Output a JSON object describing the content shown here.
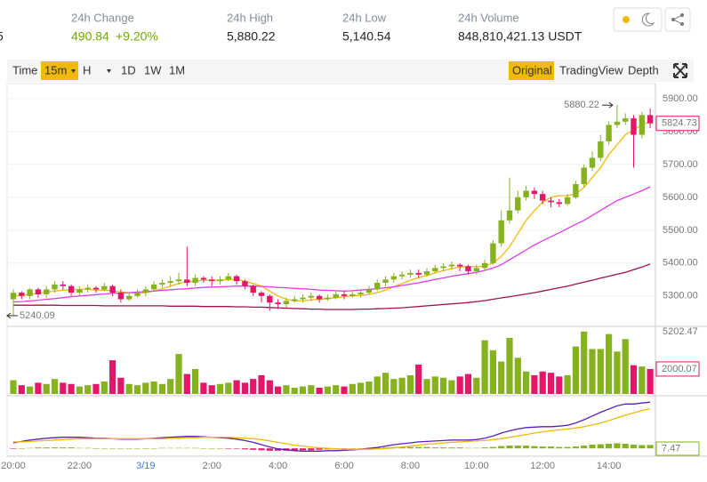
{
  "header": {
    "fragment": "5",
    "stats": [
      {
        "label": "24h Change",
        "value": "490.84",
        "change": "+9.20%"
      },
      {
        "label": "24h High",
        "value": "5,880.22"
      },
      {
        "label": "24h Low",
        "value": "5,140.54"
      },
      {
        "label": "24h Volume",
        "value": "848,810,421.13 USDT"
      }
    ]
  },
  "toolbar": {
    "intervals": [
      "Time",
      "15m",
      "H",
      "1D",
      "1W",
      "1M"
    ],
    "selected_interval": 1,
    "views": [
      "Original",
      "TradingView",
      "Depth"
    ],
    "selected_view": 0
  },
  "chart_data": [
    {
      "type": "candlestick",
      "categories": [
        "20:00",
        null,
        null,
        null,
        null,
        null,
        null,
        null,
        "22:00",
        null,
        null,
        null,
        null,
        null,
        null,
        null,
        "3/19",
        null,
        null,
        null,
        null,
        null,
        null,
        null,
        "2:00",
        null,
        null,
        null,
        null,
        null,
        null,
        null,
        "4:00",
        null,
        null,
        null,
        null,
        null,
        null,
        null,
        "6:00",
        null,
        null,
        null,
        null,
        null,
        null,
        null,
        "8:00",
        null,
        null,
        null,
        null,
        null,
        null,
        null,
        "10:00",
        null,
        null,
        null,
        null,
        null,
        null,
        null,
        "12:00",
        null,
        null,
        null,
        null,
        null,
        null,
        null,
        "14:00",
        null,
        null,
        null,
        null,
        null
      ],
      "open": [
        5290,
        5310,
        5300,
        5320,
        5305,
        5320,
        5335,
        5330,
        5310,
        5320,
        5325,
        5320,
        5330,
        5310,
        5290,
        5300,
        5310,
        5320,
        5335,
        5340,
        5345,
        5350,
        5340,
        5355,
        5350,
        5345,
        5350,
        5360,
        5345,
        5330,
        5310,
        5300,
        5280,
        5275,
        5285,
        5290,
        5295,
        5300,
        5290,
        5295,
        5305,
        5300,
        5305,
        5310,
        5320,
        5340,
        5350,
        5360,
        5365,
        5370,
        5365,
        5375,
        5385,
        5390,
        5395,
        5390,
        5375,
        5385,
        5400,
        5460,
        5530,
        5560,
        5600,
        5620,
        5610,
        5590,
        5585,
        5580,
        5600,
        5640,
        5690,
        5720,
        5770,
        5820,
        5830,
        5840,
        5790,
        5850
      ],
      "high": [
        5320,
        5315,
        5325,
        5325,
        5330,
        5345,
        5345,
        5335,
        5330,
        5335,
        5330,
        5340,
        5335,
        5320,
        5310,
        5320,
        5330,
        5345,
        5350,
        5360,
        5370,
        5450,
        5365,
        5360,
        5360,
        5360,
        5370,
        5365,
        5350,
        5335,
        5315,
        5305,
        5290,
        5295,
        5300,
        5305,
        5310,
        5305,
        5305,
        5315,
        5315,
        5315,
        5320,
        5330,
        5350,
        5360,
        5370,
        5375,
        5380,
        5380,
        5385,
        5395,
        5400,
        5405,
        5400,
        5395,
        5395,
        5410,
        5470,
        5560,
        5660,
        5620,
        5635,
        5630,
        5620,
        5600,
        5595,
        5610,
        5650,
        5700,
        5740,
        5790,
        5830,
        5880.22,
        5855,
        5850,
        5860,
        5870
      ],
      "low": [
        5240.09,
        5290,
        5290,
        5295,
        5295,
        5310,
        5320,
        5300,
        5300,
        5310,
        5310,
        5315,
        5300,
        5280,
        5285,
        5295,
        5300,
        5315,
        5325,
        5330,
        5335,
        5330,
        5330,
        5340,
        5330,
        5335,
        5345,
        5335,
        5320,
        5300,
        5280,
        5255,
        5260,
        5265,
        5280,
        5280,
        5285,
        5280,
        5285,
        5290,
        5290,
        5295,
        5295,
        5305,
        5315,
        5330,
        5340,
        5350,
        5355,
        5355,
        5360,
        5370,
        5375,
        5380,
        5375,
        5365,
        5365,
        5375,
        5395,
        5450,
        5520,
        5550,
        5590,
        5595,
        5580,
        5570,
        5570,
        5575,
        5595,
        5630,
        5680,
        5710,
        5760,
        5810,
        5820,
        5690,
        5780,
        5810
      ],
      "close": [
        5310,
        5300,
        5320,
        5305,
        5320,
        5335,
        5330,
        5310,
        5320,
        5325,
        5320,
        5330,
        5310,
        5290,
        5300,
        5310,
        5320,
        5335,
        5340,
        5345,
        5350,
        5340,
        5355,
        5350,
        5345,
        5350,
        5360,
        5345,
        5330,
        5310,
        5300,
        5280,
        5275,
        5285,
        5290,
        5295,
        5300,
        5290,
        5295,
        5305,
        5300,
        5305,
        5310,
        5320,
        5340,
        5350,
        5360,
        5365,
        5370,
        5365,
        5375,
        5385,
        5390,
        5395,
        5390,
        5375,
        5385,
        5400,
        5460,
        5530,
        5560,
        5600,
        5620,
        5610,
        5590,
        5585,
        5580,
        5600,
        5640,
        5690,
        5720,
        5770,
        5820,
        5830,
        5840,
        5790,
        5850,
        5824.73
      ],
      "ylim": [
        5213,
        5943
      ],
      "yticks": [
        {
          "value": 5300,
          "label": "5300.00"
        },
        {
          "value": 5400,
          "label": "5400.00"
        },
        {
          "value": 5500,
          "label": "5500.00"
        },
        {
          "value": 5600,
          "label": "5600.00"
        },
        {
          "value": 5700,
          "label": "5700.00"
        },
        {
          "value": 5800,
          "label": "5800.00"
        },
        {
          "value": 5900,
          "label": "5900.00"
        }
      ],
      "grid": true,
      "up_color": "#86b21e",
      "down_color": "#e3166a",
      "moving_averages": [
        {
          "color": "#f0b90b",
          "values": [
            5300,
            5302,
            5305,
            5308,
            5312,
            5315,
            5318,
            5318,
            5320,
            5320,
            5318,
            5318,
            5316,
            5312,
            5310,
            5308,
            5310,
            5315,
            5322,
            5330,
            5338,
            5343,
            5345,
            5348,
            5348,
            5348,
            5350,
            5350,
            5345,
            5338,
            5330,
            5315,
            5300,
            5290,
            5285,
            5285,
            5288,
            5290,
            5292,
            5295,
            5297,
            5300,
            5302,
            5305,
            5310,
            5318,
            5328,
            5338,
            5348,
            5356,
            5362,
            5370,
            5377,
            5383,
            5388,
            5390,
            5389,
            5390,
            5400,
            5420,
            5450,
            5490,
            5530,
            5560,
            5585,
            5600,
            5605,
            5605,
            5610,
            5630,
            5660,
            5690,
            5730,
            5760,
            5790,
            5805,
            5820,
            5830
          ]
        },
        {
          "color": "#e23ce6",
          "values": [
            5282,
            5283,
            5285,
            5287,
            5290,
            5292,
            5295,
            5298,
            5300,
            5302,
            5304,
            5306,
            5308,
            5309,
            5310,
            5312,
            5313,
            5315,
            5317,
            5319,
            5321,
            5322,
            5324,
            5326,
            5327,
            5328,
            5329,
            5330,
            5330,
            5330,
            5329,
            5328,
            5326,
            5325,
            5323,
            5322,
            5320,
            5318,
            5317,
            5316,
            5315,
            5316,
            5318,
            5320,
            5322,
            5325,
            5328,
            5332,
            5336,
            5340,
            5345,
            5350,
            5355,
            5360,
            5364,
            5368,
            5372,
            5378,
            5385,
            5395,
            5410,
            5425,
            5440,
            5455,
            5468,
            5480,
            5492,
            5505,
            5518,
            5530,
            5545,
            5560,
            5575,
            5590,
            5600,
            5610,
            5620,
            5632
          ]
        },
        {
          "color": "#a3104f",
          "values": [
            5272,
            5272,
            5272,
            5272,
            5272,
            5272,
            5271,
            5271,
            5271,
            5271,
            5271,
            5270,
            5270,
            5270,
            5270,
            5270,
            5270,
            5270,
            5270,
            5269,
            5269,
            5269,
            5269,
            5268,
            5268,
            5268,
            5268,
            5267,
            5267,
            5266,
            5266,
            5265,
            5264,
            5263,
            5262,
            5261,
            5260,
            5260,
            5259,
            5259,
            5259,
            5259,
            5260,
            5260,
            5261,
            5262,
            5263,
            5264,
            5266,
            5268,
            5270,
            5272,
            5274,
            5276,
            5278,
            5280,
            5283,
            5286,
            5290,
            5294,
            5298,
            5302,
            5306,
            5310,
            5315,
            5320,
            5325,
            5330,
            5336,
            5342,
            5348,
            5354,
            5360,
            5366,
            5372,
            5380,
            5388,
            5397
          ]
        }
      ]
    },
    {
      "type": "bar",
      "values": [
        1100,
        700,
        600,
        900,
        800,
        1200,
        900,
        800,
        600,
        700,
        800,
        1000,
        2700,
        1300,
        800,
        700,
        900,
        1000,
        800,
        1200,
        3200,
        1600,
        2000,
        900,
        700,
        800,
        900,
        1100,
        900,
        1200,
        1500,
        1100,
        600,
        700,
        500,
        600,
        700,
        500,
        600,
        700,
        600,
        800,
        900,
        1000,
        1400,
        1700,
        1200,
        1300,
        1500,
        2350,
        1200,
        1400,
        1300,
        1100,
        1400,
        1600,
        1300,
        4300,
        3500,
        2600,
        4500,
        2900,
        1800,
        1500,
        1800,
        1700,
        1400,
        1500,
        3800,
        5000,
        3600,
        3600,
        4800,
        3400,
        4400,
        2300,
        2200,
        2000.07
      ],
      "ylim": [
        0,
        5202.47
      ],
      "yticks": [
        5202.47
      ]
    },
    {
      "type": "macd",
      "dif": [
        12,
        15,
        18,
        20,
        22,
        23,
        24,
        24,
        24,
        23,
        22,
        22,
        21,
        20,
        20,
        20,
        21,
        22,
        23,
        24,
        25,
        26,
        26,
        25,
        24,
        23,
        22,
        20,
        17,
        13,
        8,
        3,
        -1,
        -3,
        -5,
        -6,
        -6,
        -6,
        -5,
        -5,
        -4,
        -3,
        -2,
        0,
        2,
        5,
        8,
        10,
        12,
        14,
        15,
        16,
        17,
        18,
        18,
        18,
        19,
        22,
        27,
        33,
        38,
        42,
        45,
        46,
        47,
        47,
        48,
        50,
        55,
        62,
        70,
        78,
        85,
        92,
        96,
        96,
        98,
        100
      ],
      "dea": [
        14,
        14,
        15,
        16,
        17,
        18,
        19,
        20,
        21,
        21,
        21,
        21,
        21,
        21,
        21,
        21,
        21,
        21,
        21,
        22,
        22,
        23,
        23,
        24,
        24,
        24,
        24,
        23,
        22,
        21,
        19,
        16,
        13,
        10,
        7,
        5,
        3,
        1,
        0,
        -1,
        -2,
        -2,
        -2,
        -2,
        -1,
        0,
        1,
        3,
        5,
        7,
        9,
        10,
        12,
        13,
        14,
        15,
        16,
        17,
        19,
        21,
        24,
        27,
        30,
        33,
        36,
        38,
        40,
        42,
        44,
        47,
        51,
        55,
        60,
        66,
        72,
        77,
        82,
        86
      ],
      "histogram": [
        -1,
        0,
        1,
        2,
        2,
        2,
        2,
        2,
        1,
        1,
        0,
        0,
        0,
        0,
        0,
        0,
        0,
        0,
        1,
        1,
        1,
        1,
        1,
        0,
        0,
        0,
        -1,
        -1,
        -2,
        -3,
        -4,
        -5,
        -5,
        -5,
        -5,
        -4,
        -4,
        -3,
        -2,
        -2,
        -1,
        0,
        0,
        1,
        1,
        2,
        3,
        3,
        3,
        3,
        3,
        2,
        2,
        2,
        2,
        1,
        1,
        2,
        3,
        5,
        6,
        6,
        6,
        5,
        4,
        4,
        3,
        3,
        4,
        6,
        8,
        9,
        10,
        11,
        10,
        8,
        7,
        7.47
      ],
      "ylim": [
        -15,
        110
      ],
      "dif_color": "#5b21b6",
      "dea_color": "#f0b90b",
      "up_color": "#86b21e",
      "down_color": "#e3166a"
    }
  ]
}
